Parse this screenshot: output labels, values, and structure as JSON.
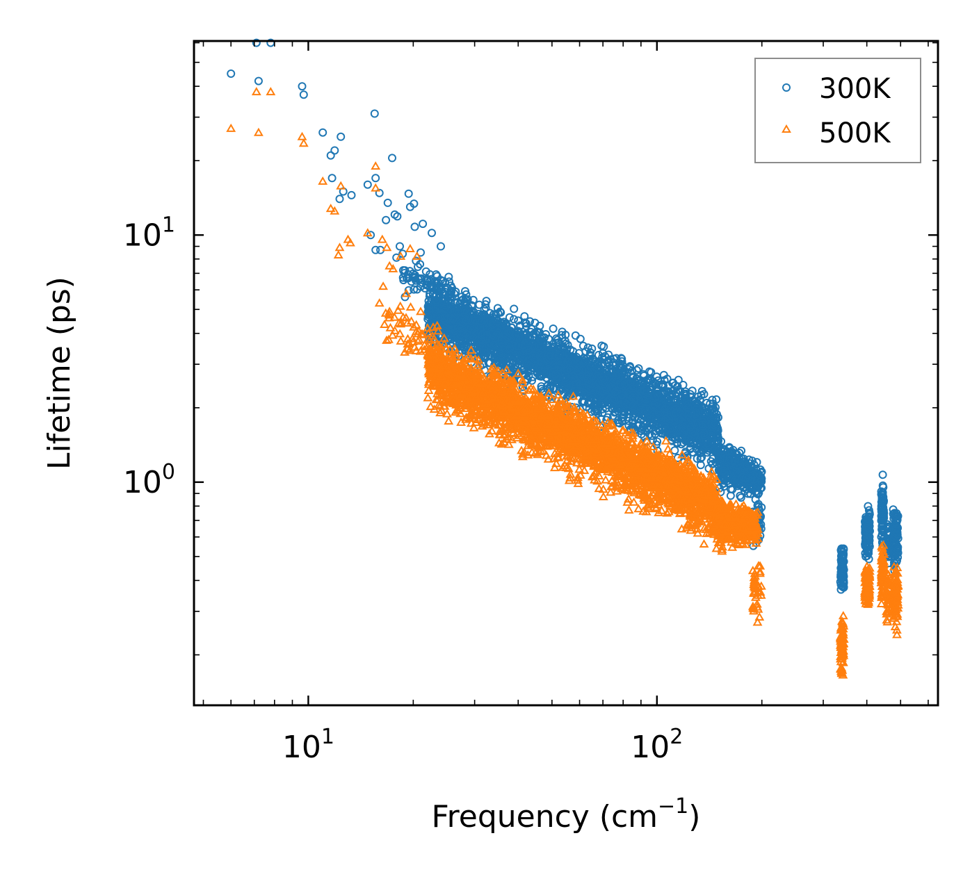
{
  "chart_data": {
    "type": "scatter",
    "x_scale": "log",
    "y_scale": "log",
    "xlim": [
      4.7,
      640
    ],
    "ylim": [
      0.125,
      61
    ],
    "xlabel": "Frequency (cm",
    "xlabel_sup": "−1",
    "xlabel_end": ")",
    "ylabel": "Lifetime (ps)",
    "x_ticks": [
      {
        "value": 10,
        "base": "10",
        "exp": "1"
      },
      {
        "value": 100,
        "base": "10",
        "exp": "2"
      }
    ],
    "y_ticks": [
      {
        "value": 1,
        "base": "10",
        "exp": "0"
      },
      {
        "value": 10,
        "base": "10",
        "exp": "1"
      }
    ],
    "legend_position": "top-right",
    "series": [
      {
        "name": "300K",
        "marker": "circle",
        "color": "#1f77b4",
        "seed": 11,
        "points": [
          [
            6.0,
            45
          ],
          [
            7.1,
            60
          ],
          [
            7.8,
            60
          ],
          [
            7.2,
            42
          ],
          [
            9.6,
            40
          ],
          [
            9.7,
            37
          ],
          [
            11.0,
            26
          ],
          [
            11.6,
            21
          ],
          [
            11.9,
            22
          ],
          [
            12.4,
            25
          ],
          [
            11.7,
            17
          ],
          [
            12.3,
            14
          ],
          [
            12.6,
            15
          ],
          [
            13.3,
            14.5
          ],
          [
            14.8,
            16
          ],
          [
            15.5,
            31
          ],
          [
            15.6,
            17
          ],
          [
            16.0,
            14.8
          ],
          [
            15.1,
            10
          ],
          [
            15.6,
            8.7
          ],
          [
            16.1,
            8.7
          ],
          [
            16.7,
            11.5
          ],
          [
            16.9,
            13.5
          ],
          [
            17.4,
            20.5
          ],
          [
            17.7,
            12.1
          ],
          [
            18.0,
            11.9
          ],
          [
            18.3,
            9.0
          ],
          [
            17.9,
            8.1
          ],
          [
            19.4,
            14.7
          ],
          [
            19.6,
            13
          ],
          [
            20.1,
            13.4
          ],
          [
            20.2,
            10.8
          ],
          [
            21.3,
            11.1
          ],
          [
            22.6,
            10.2
          ],
          [
            21.0,
            8.5
          ],
          [
            24.0,
            9.0
          ]
        ],
        "bands": [
          {
            "x": [
              18.5,
              26
            ],
            "y_start": [
              5.5,
              5.2
            ],
            "y_end": [
              9.0,
              7.0
            ],
            "n": 60
          },
          {
            "x": [
              22,
              150
            ],
            "y_start": [
              3.2,
              1.0
            ],
            "y_end": [
              7.5,
              2.4
            ],
            "n": 2400
          },
          {
            "x": [
              22,
              150
            ],
            "y_start": [
              4.2,
              1.3
            ],
            "y_end": [
              6.0,
              1.9
            ],
            "n": 1000
          },
          {
            "x": [
              150,
              200
            ],
            "y_start": [
              0.85,
              0.85
            ],
            "y_end": [
              1.6,
              1.2
            ],
            "n": 400
          },
          {
            "x": [
              188,
              200
            ],
            "y_start": [
              0.48,
              0.48
            ],
            "y_end": [
              0.95,
              0.95
            ],
            "n": 40
          },
          {
            "x": [
              336,
              344
            ],
            "y_start": [
              0.33,
              0.33
            ],
            "y_end": [
              0.58,
              0.58
            ],
            "n": 70
          },
          {
            "x": [
              395,
              408
            ],
            "y_start": [
              0.45,
              0.45
            ],
            "y_end": [
              0.85,
              0.85
            ],
            "n": 90
          },
          {
            "x": [
              440,
              448
            ],
            "y_start": [
              0.5,
              0.5
            ],
            "y_end": [
              1.2,
              1.2
            ],
            "n": 70
          },
          {
            "x": [
              455,
              465
            ],
            "y_start": [
              0.42,
              0.42
            ],
            "y_end": [
              0.75,
              0.75
            ],
            "n": 40
          },
          {
            "x": [
              476,
              492
            ],
            "y_start": [
              0.42,
              0.42
            ],
            "y_end": [
              0.85,
              0.85
            ],
            "n": 90
          }
        ]
      },
      {
        "name": "500K",
        "marker": "triangle",
        "color": "#ff7f0e",
        "seed": 29,
        "points": [
          [
            6.0,
            27
          ],
          [
            7.1,
            38
          ],
          [
            7.8,
            38
          ],
          [
            7.2,
            26
          ],
          [
            9.6,
            25
          ],
          [
            9.7,
            23.5
          ],
          [
            11.0,
            16.5
          ],
          [
            11.6,
            12.8
          ],
          [
            11.9,
            12.5
          ],
          [
            12.4,
            15.8
          ],
          [
            12.2,
            8.3
          ],
          [
            12.3,
            8.9
          ],
          [
            13.0,
            9.6
          ],
          [
            13.2,
            9.3
          ],
          [
            14.8,
            10.2
          ],
          [
            15.6,
            19
          ],
          [
            15.6,
            15.5
          ],
          [
            16.3,
            9.6
          ],
          [
            16.8,
            8.9
          ],
          [
            16.4,
            6.2
          ],
          [
            17.1,
            7.5
          ],
          [
            17.5,
            7.3
          ],
          [
            17.1,
            4.9
          ],
          [
            18.4,
            8.2
          ],
          [
            19.1,
            5.8
          ],
          [
            19.6,
            8.8
          ],
          [
            20.5,
            8.2
          ],
          [
            21.0,
            4.9
          ],
          [
            20.4,
            3.4
          ],
          [
            22.7,
            3.9
          ],
          [
            16.0,
            5.3
          ]
        ],
        "bands": [
          {
            "x": [
              16.5,
              24
            ],
            "y_start": [
              3.2,
              2.4
            ],
            "y_end": [
              6.0,
              5.0
            ],
            "n": 60
          },
          {
            "x": [
              22,
              150
            ],
            "y_start": [
              1.8,
              0.52
            ],
            "y_end": [
              4.5,
              1.2
            ],
            "n": 2400
          },
          {
            "x": [
              22,
              150
            ],
            "y_start": [
              2.5,
              0.7
            ],
            "y_end": [
              3.7,
              1.0
            ],
            "n": 1000
          },
          {
            "x": [
              145,
              195
            ],
            "y_start": [
              0.5,
              0.55
            ],
            "y_end": [
              0.95,
              0.8
            ],
            "n": 400
          },
          {
            "x": [
              188,
              200
            ],
            "y_start": [
              0.25,
              0.25
            ],
            "y_end": [
              0.52,
              0.52
            ],
            "n": 40
          },
          {
            "x": [
              336,
              344
            ],
            "y_start": [
              0.15,
              0.15
            ],
            "y_end": [
              0.31,
              0.31
            ],
            "n": 80
          },
          {
            "x": [
              395,
              408
            ],
            "y_start": [
              0.3,
              0.3
            ],
            "y_end": [
              0.48,
              0.48
            ],
            "n": 90
          },
          {
            "x": [
              440,
              448
            ],
            "y_start": [
              0.3,
              0.3
            ],
            "y_end": [
              0.62,
              0.62
            ],
            "n": 70
          },
          {
            "x": [
              455,
              465
            ],
            "y_start": [
              0.24,
              0.24
            ],
            "y_end": [
              0.45,
              0.45
            ],
            "n": 40
          },
          {
            "x": [
              476,
              492
            ],
            "y_start": [
              0.24,
              0.24
            ],
            "y_end": [
              0.5,
              0.5
            ],
            "n": 90
          }
        ]
      }
    ]
  }
}
